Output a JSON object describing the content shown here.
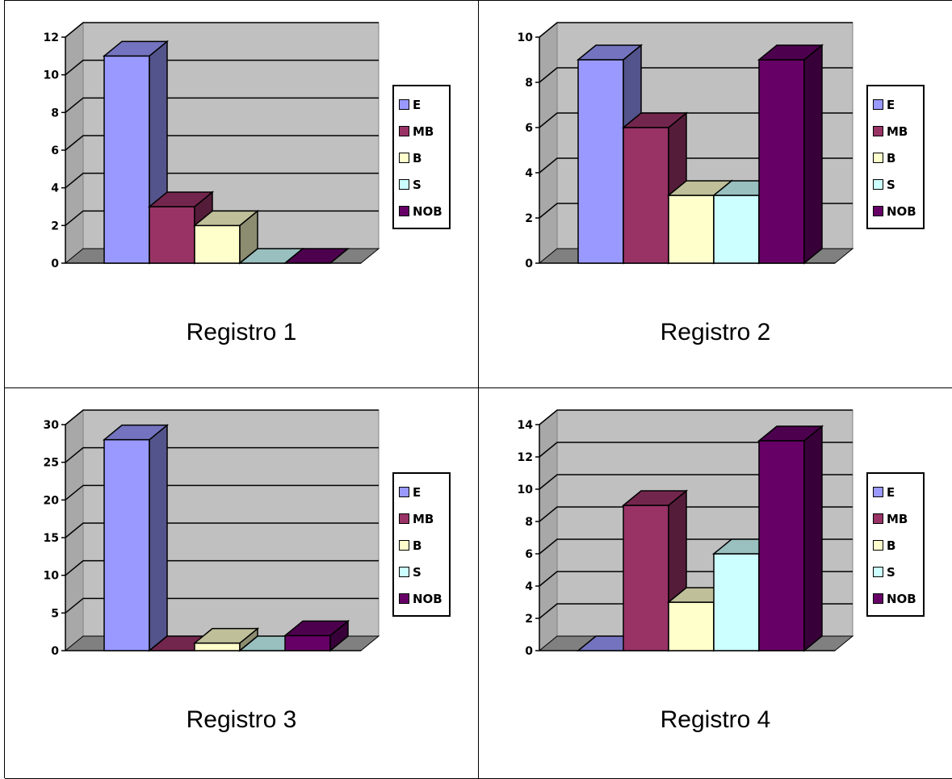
{
  "chart_data": [
    {
      "type": "bar",
      "caption": "Registro 1",
      "categories": [
        "E",
        "MB",
        "B",
        "S",
        "NOB"
      ],
      "values": [
        11,
        3,
        2,
        0,
        0
      ],
      "ylim": [
        0,
        12
      ],
      "yticks": [
        "0",
        "2",
        "4",
        "6",
        "8",
        "10",
        "12"
      ],
      "legend": [
        "E",
        "MB",
        "B",
        "S",
        "NOB"
      ],
      "legend_position": "right",
      "grid": true
    },
    {
      "type": "bar",
      "caption": "Registro 2",
      "categories": [
        "E",
        "MB",
        "B",
        "S",
        "NOB"
      ],
      "values": [
        9,
        6,
        3,
        3,
        9
      ],
      "ylim": [
        0,
        10
      ],
      "yticks": [
        "0",
        "2",
        "4",
        "6",
        "8",
        "10"
      ],
      "legend": [
        "E",
        "MB",
        "B",
        "S",
        "NOB"
      ],
      "legend_position": "right",
      "grid": true
    },
    {
      "type": "bar",
      "caption": "Registro 3",
      "categories": [
        "E",
        "MB",
        "B",
        "S",
        "NOB"
      ],
      "values": [
        28,
        0,
        1,
        0,
        2
      ],
      "ylim": [
        0,
        30
      ],
      "yticks": [
        "0",
        "5",
        "10",
        "15",
        "20",
        "25",
        "30"
      ],
      "legend": [
        "E",
        "MB",
        "B",
        "S",
        "NOB"
      ],
      "legend_position": "right",
      "grid": true
    },
    {
      "type": "bar",
      "caption": "Registro 4",
      "categories": [
        "E",
        "MB",
        "B",
        "S",
        "NOB"
      ],
      "values": [
        0,
        9,
        3,
        6,
        13
      ],
      "ylim": [
        0,
        14
      ],
      "yticks": [
        "0",
        "2",
        "4",
        "6",
        "8",
        "10",
        "12",
        "14"
      ],
      "legend": [
        "E",
        "MB",
        "B",
        "S",
        "NOB"
      ],
      "legend_position": "right",
      "grid": true
    }
  ],
  "series_colors": {
    "E": "#9999ff",
    "MB": "#993366",
    "B": "#ffffcc",
    "S": "#ccffff",
    "NOB": "#660066"
  },
  "wall_color": "#c0c0c0",
  "floor_color": "#808080"
}
